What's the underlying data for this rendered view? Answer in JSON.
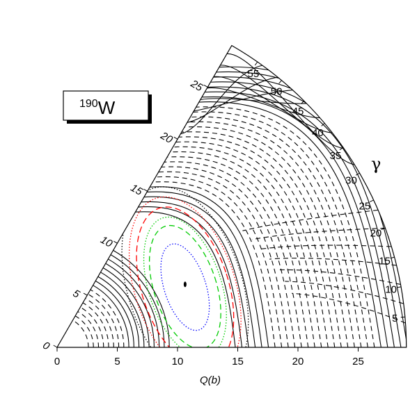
{
  "nucleus": {
    "mass_number": "190",
    "element": "W"
  },
  "chart_data": {
    "type": "contour",
    "coordinate_system": "polar wedge (Q, gamma) in 0-60 degree sector",
    "xlabel": "Q(b)",
    "gamma_label": "γ",
    "q_range": [
      0,
      29
    ],
    "gamma_range_deg": [
      0,
      60
    ],
    "q_ticks": [
      "0",
      "5",
      "10",
      "15",
      "20",
      "25"
    ],
    "left_edge_ticks": [
      "0",
      "5",
      "10",
      "15",
      "20",
      "25"
    ],
    "gamma_ticks": [
      "5",
      "10",
      "15",
      "20",
      "25",
      "30",
      "35",
      "40",
      "45",
      "50",
      "55"
    ],
    "minimum": {
      "q": 11.8,
      "gamma_deg": 27
    },
    "line_styles": {
      "solid": "#000000",
      "dashed": "#000000",
      "inner_blue_dotted": "#0000ff",
      "green_dashed": "#00cc00",
      "green_dotted": "#00cc00",
      "red_dashed": "#ff0000",
      "red_dotted": "#ff0000",
      "black_dotted": "#000000"
    },
    "contours": [
      {
        "style": "blue_dotted",
        "rx": 2.4,
        "ry": 5.2
      },
      {
        "style": "green_dashed",
        "rx": 3.6,
        "ry": 7.4
      },
      {
        "style": "green_dotted",
        "rx": 4.2,
        "ry": 8.4
      },
      {
        "style": "red_dashed",
        "rx": 5.0,
        "ry": 9.6
      },
      {
        "style": "red_dotted",
        "rx": 5.8,
        "ry": 10.8
      },
      {
        "style": "black_dotted",
        "rx": 6.6,
        "ry": 12.0
      }
    ]
  }
}
